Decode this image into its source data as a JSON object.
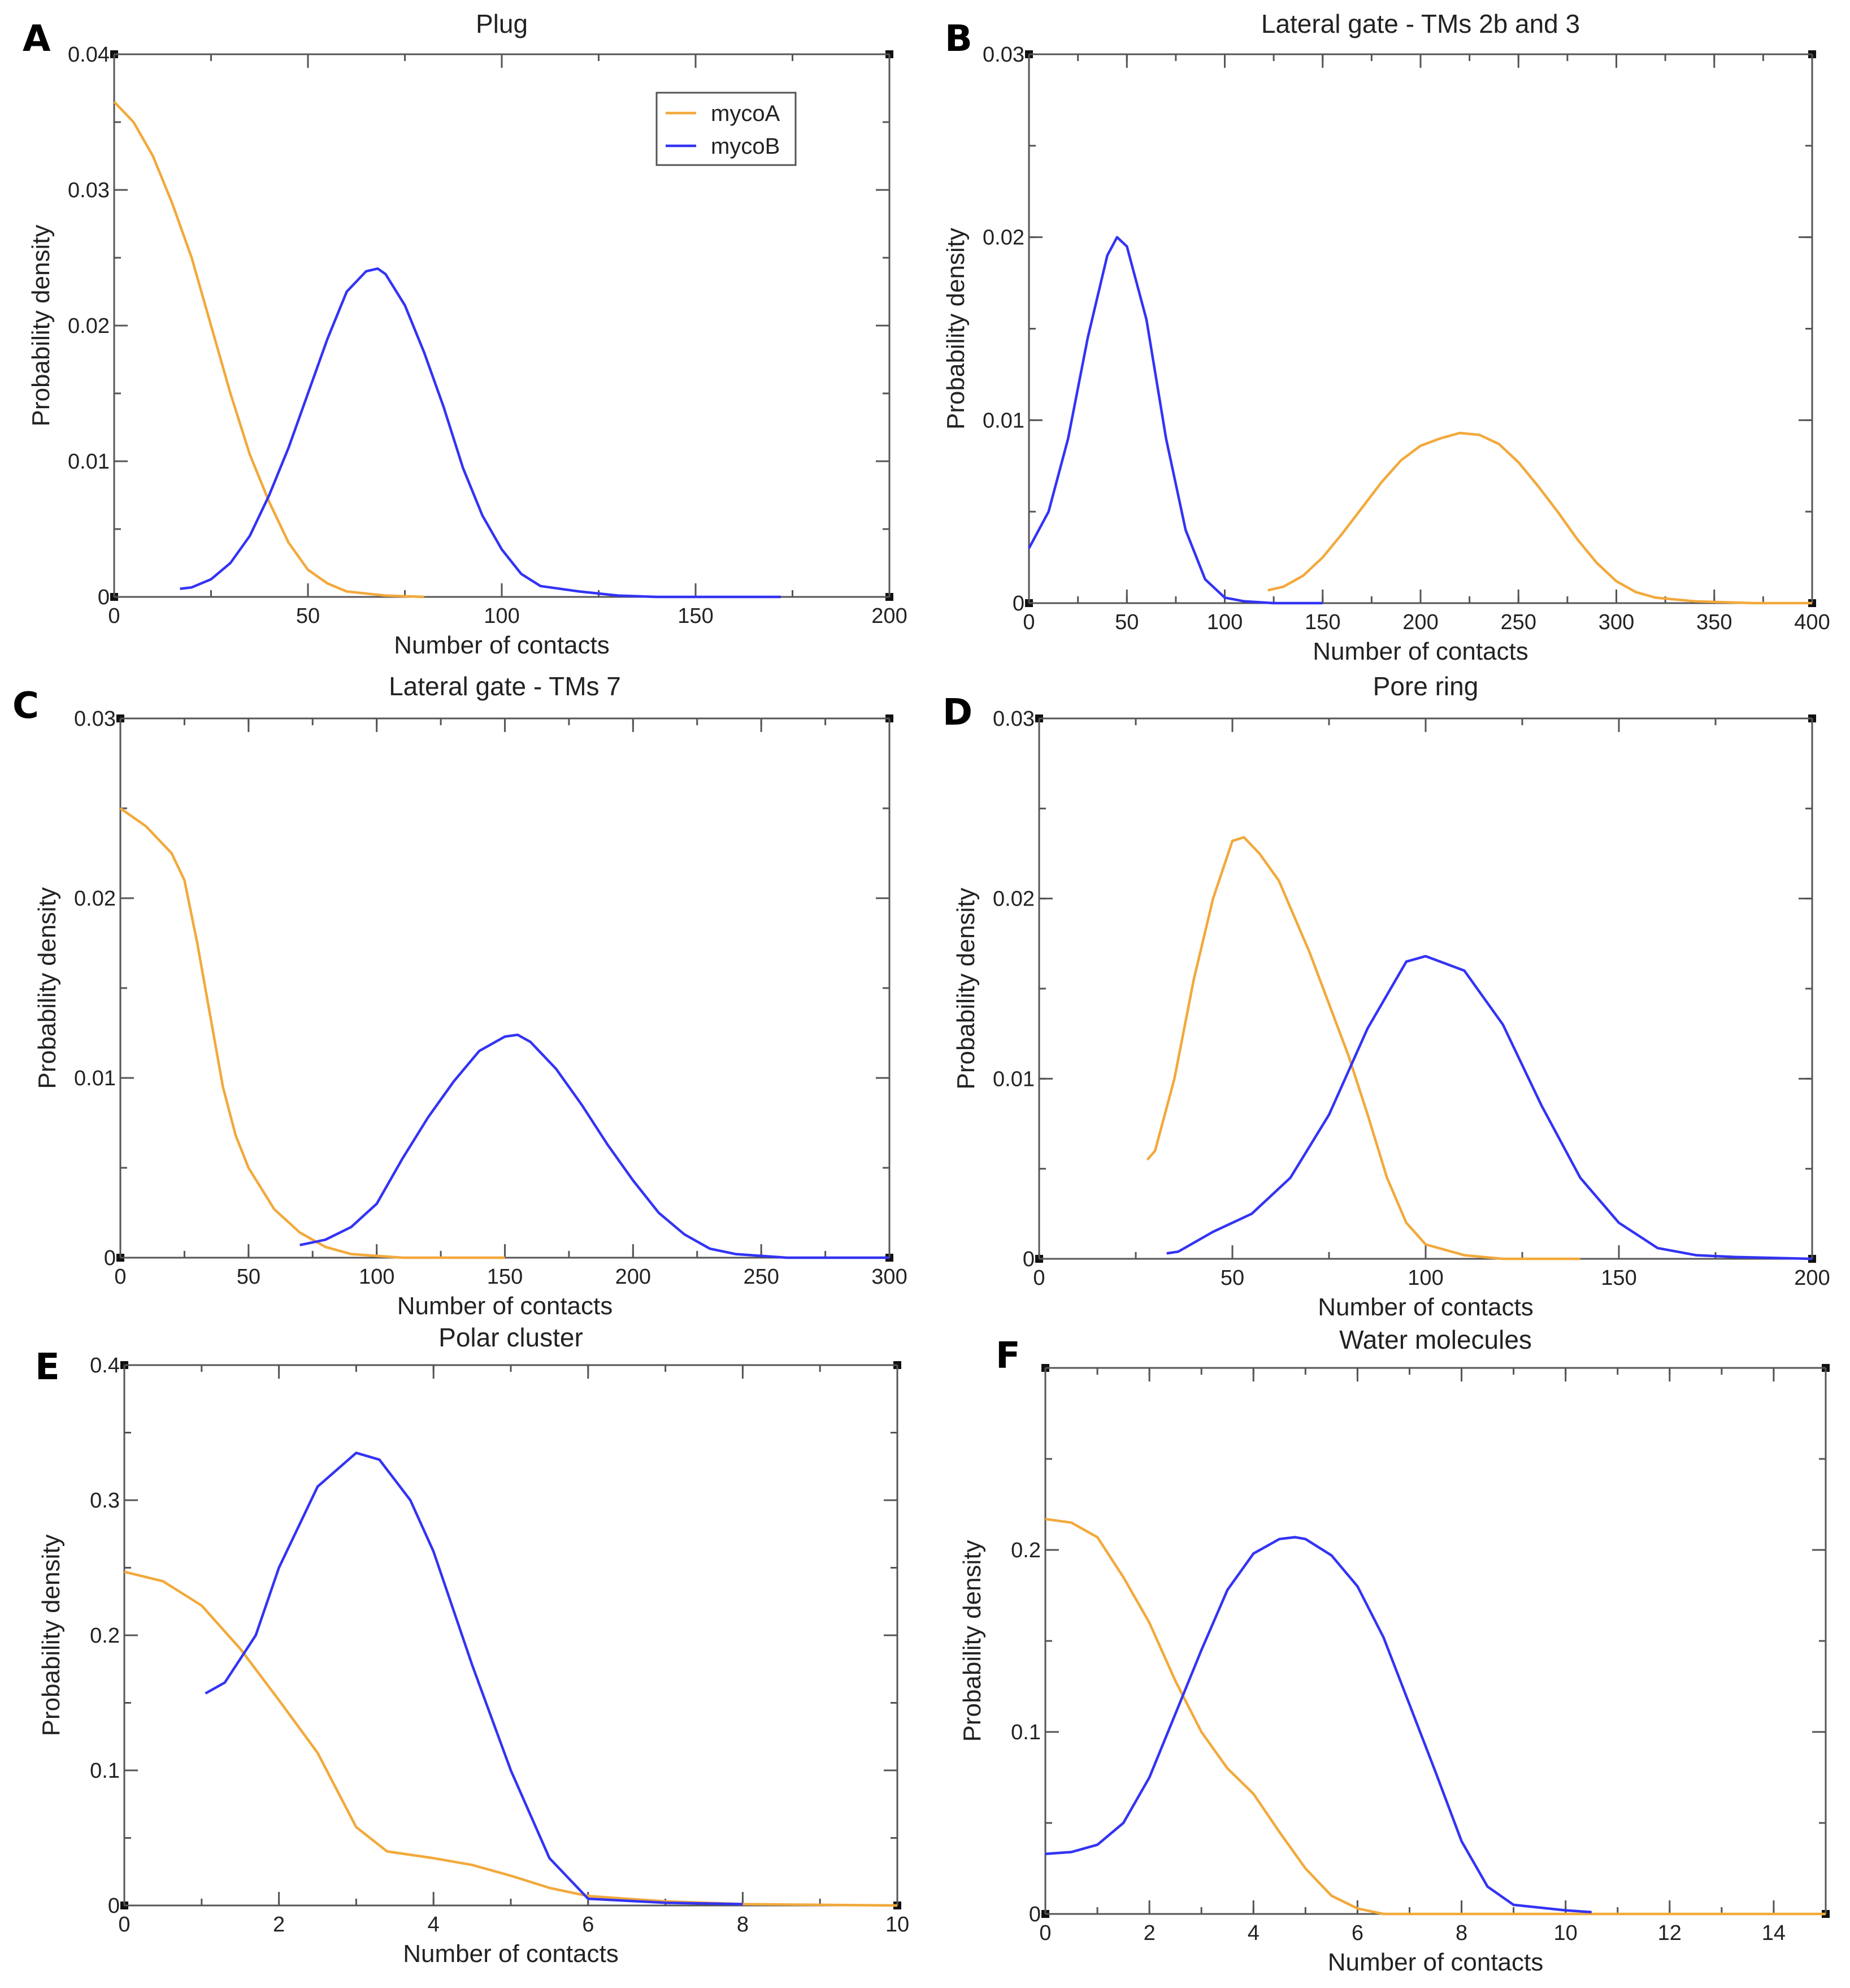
{
  "colors": {
    "mycoA": "#f2a93b",
    "mycoB": "#3333f5",
    "axis": "#555555"
  },
  "legend": {
    "placement": "top-right",
    "entries": [
      "mycoA",
      "mycoB"
    ]
  },
  "chart_data": [
    {
      "panel": "A",
      "type": "line",
      "title": "Plug",
      "xlabel": "Number of contacts",
      "ylabel": "Probability density",
      "xlim": [
        0,
        200
      ],
      "ylim": [
        0,
        0.04
      ],
      "xticks": [
        "0",
        "50",
        "100",
        "150",
        "200"
      ],
      "xtick_values": [
        0,
        50,
        100,
        150,
        200
      ],
      "xminor": 25,
      "yticks": [
        "0",
        "0.01",
        "0.02",
        "0.03",
        "0.04"
      ],
      "ytick_values": [
        0,
        0.01,
        0.02,
        0.03,
        0.04
      ],
      "yminor": 0.005,
      "series": [
        {
          "name": "mycoA",
          "x": [
            0,
            5,
            10,
            15,
            20,
            25,
            30,
            35,
            40,
            45,
            50,
            55,
            60,
            70,
            80
          ],
          "y": [
            0.0365,
            0.035,
            0.0325,
            0.029,
            0.025,
            0.02,
            0.015,
            0.0105,
            0.007,
            0.004,
            0.002,
            0.001,
            0.0004,
            0.0001,
            0
          ]
        },
        {
          "name": "mycoB",
          "x": [
            17,
            20,
            25,
            30,
            35,
            40,
            45,
            50,
            55,
            60,
            65,
            68,
            70,
            75,
            80,
            85,
            90,
            95,
            100,
            105,
            110,
            120,
            130,
            140,
            172
          ],
          "y": [
            0.0006,
            0.0007,
            0.0013,
            0.0025,
            0.0045,
            0.0075,
            0.011,
            0.015,
            0.019,
            0.0225,
            0.024,
            0.0242,
            0.0238,
            0.0215,
            0.018,
            0.014,
            0.0095,
            0.006,
            0.0035,
            0.0017,
            0.0008,
            0.0004,
            0.0001,
            0,
            0
          ]
        }
      ]
    },
    {
      "panel": "B",
      "type": "line",
      "title": "Lateral gate - TMs 2b and 3",
      "xlabel": "Number of contacts",
      "ylabel": "Probability density",
      "xlim": [
        0,
        400
      ],
      "ylim": [
        0,
        0.03
      ],
      "xticks": [
        "0",
        "50",
        "100",
        "150",
        "200",
        "250",
        "300",
        "350",
        "400"
      ],
      "xtick_values": [
        0,
        50,
        100,
        150,
        200,
        250,
        300,
        350,
        400
      ],
      "xminor": 25,
      "yticks": [
        "0",
        "0.01",
        "0.02",
        "0.03"
      ],
      "ytick_values": [
        0,
        0.01,
        0.02,
        0.03
      ],
      "yminor": 0.005,
      "series": [
        {
          "name": "mycoA",
          "x": [
            122,
            130,
            140,
            150,
            160,
            170,
            180,
            190,
            200,
            210,
            220,
            230,
            240,
            250,
            260,
            270,
            280,
            290,
            300,
            310,
            320,
            340,
            370,
            400
          ],
          "y": [
            0.0007,
            0.0009,
            0.0015,
            0.0025,
            0.0038,
            0.0052,
            0.0066,
            0.0078,
            0.0086,
            0.009,
            0.0093,
            0.0092,
            0.0087,
            0.0077,
            0.0064,
            0.005,
            0.0035,
            0.0022,
            0.0012,
            0.0006,
            0.0003,
            0.0001,
            0,
            0
          ]
        },
        {
          "name": "mycoB",
          "x": [
            0,
            10,
            20,
            30,
            40,
            45,
            50,
            60,
            70,
            80,
            90,
            100,
            110,
            125,
            150
          ],
          "y": [
            0.003,
            0.005,
            0.009,
            0.0145,
            0.019,
            0.02,
            0.0195,
            0.0155,
            0.009,
            0.004,
            0.0013,
            0.0003,
            0.0001,
            0,
            0
          ]
        }
      ]
    },
    {
      "panel": "C",
      "type": "line",
      "title": "Lateral gate - TMs 7",
      "xlabel": "Number of contacts",
      "ylabel": "Probability density",
      "xlim": [
        0,
        300
      ],
      "ylim": [
        0,
        0.03
      ],
      "xticks": [
        "0",
        "50",
        "100",
        "150",
        "200",
        "250",
        "300"
      ],
      "xtick_values": [
        0,
        50,
        100,
        150,
        200,
        250,
        300
      ],
      "xminor": 25,
      "yticks": [
        "0",
        "0.01",
        "0.02",
        "0.03"
      ],
      "ytick_values": [
        0,
        0.01,
        0.02,
        0.03
      ],
      "yminor": 0.005,
      "series": [
        {
          "name": "mycoA",
          "x": [
            0,
            10,
            20,
            25,
            30,
            35,
            40,
            45,
            50,
            60,
            70,
            80,
            90,
            110,
            150
          ],
          "y": [
            0.025,
            0.024,
            0.0225,
            0.021,
            0.0175,
            0.0135,
            0.0095,
            0.0068,
            0.005,
            0.0027,
            0.0014,
            0.0006,
            0.0002,
            0,
            0
          ]
        },
        {
          "name": "mycoB",
          "x": [
            70,
            80,
            90,
            100,
            110,
            120,
            130,
            140,
            150,
            155,
            160,
            170,
            180,
            190,
            200,
            210,
            220,
            230,
            240,
            260,
            300
          ],
          "y": [
            0.0007,
            0.001,
            0.0017,
            0.003,
            0.0055,
            0.0078,
            0.0098,
            0.0115,
            0.0123,
            0.0124,
            0.012,
            0.0105,
            0.0085,
            0.0063,
            0.0043,
            0.0025,
            0.0013,
            0.0005,
            0.0002,
            0,
            0
          ]
        }
      ]
    },
    {
      "panel": "D",
      "type": "line",
      "title": "Pore ring",
      "xlabel": "Number of contacts",
      "ylabel": "Probability density",
      "xlim": [
        0,
        200
      ],
      "ylim": [
        0,
        0.03
      ],
      "xticks": [
        "0",
        "50",
        "100",
        "150",
        "200"
      ],
      "xtick_values": [
        0,
        50,
        100,
        150,
        200
      ],
      "xminor": 25,
      "yticks": [
        "0",
        "0.01",
        "0.02",
        "0.03"
      ],
      "ytick_values": [
        0,
        0.01,
        0.02,
        0.03
      ],
      "yminor": 0.005,
      "series": [
        {
          "name": "mycoA",
          "x": [
            28,
            30,
            35,
            40,
            45,
            50,
            53,
            57,
            62,
            70,
            80,
            85,
            90,
            95,
            100,
            110,
            120,
            140
          ],
          "y": [
            0.0055,
            0.006,
            0.01,
            0.0155,
            0.02,
            0.0232,
            0.0234,
            0.0225,
            0.021,
            0.017,
            0.0113,
            0.008,
            0.0045,
            0.002,
            0.0008,
            0.0002,
            0,
            0
          ]
        },
        {
          "name": "mycoB",
          "x": [
            33,
            36,
            45,
            55,
            65,
            75,
            85,
            95,
            100,
            110,
            120,
            130,
            140,
            150,
            160,
            170,
            180,
            200
          ],
          "y": [
            0.0003,
            0.0004,
            0.0015,
            0.0025,
            0.0045,
            0.008,
            0.0128,
            0.0165,
            0.0168,
            0.016,
            0.013,
            0.0085,
            0.0045,
            0.002,
            0.0006,
            0.0002,
            0.0001,
            0
          ]
        }
      ]
    },
    {
      "panel": "E",
      "type": "line",
      "title": "Polar cluster",
      "xlabel": "Number of contacts",
      "ylabel": "Probability density",
      "xlim": [
        0,
        10
      ],
      "ylim": [
        0,
        0.4
      ],
      "xticks": [
        "0",
        "2",
        "4",
        "6",
        "8",
        "10"
      ],
      "xtick_values": [
        0,
        2,
        4,
        6,
        8,
        10
      ],
      "xminor": 1,
      "yticks": [
        "0",
        "0.1",
        "0.2",
        "0.3",
        "0.4"
      ],
      "ytick_values": [
        0,
        0.1,
        0.2,
        0.3,
        0.4
      ],
      "yminor": 0.05,
      "series": [
        {
          "name": "mycoA",
          "x": [
            0,
            0.5,
            1,
            1.5,
            2,
            2.5,
            3,
            3.4,
            4,
            4.5,
            5,
            5.5,
            6,
            7,
            8,
            10
          ],
          "y": [
            0.247,
            0.24,
            0.222,
            0.19,
            0.152,
            0.113,
            0.058,
            0.04,
            0.035,
            0.03,
            0.022,
            0.013,
            0.007,
            0.003,
            0.001,
            0
          ]
        },
        {
          "name": "mycoB",
          "x": [
            1.05,
            1.3,
            1.7,
            2,
            2.5,
            3,
            3.3,
            3.7,
            4,
            4.5,
            5,
            5.5,
            6,
            7,
            8
          ],
          "y": [
            0.157,
            0.165,
            0.2,
            0.25,
            0.31,
            0.335,
            0.33,
            0.3,
            0.262,
            0.178,
            0.1,
            0.035,
            0.005,
            0.002,
            0.001
          ]
        }
      ]
    },
    {
      "panel": "F",
      "type": "line",
      "title": "Water molecules",
      "xlabel": "Number of contacts",
      "ylabel": "Probability density",
      "xlim": [
        0,
        15
      ],
      "ylim": [
        0,
        0.3
      ],
      "xticks": [
        "0",
        "2",
        "4",
        "6",
        "8",
        "10",
        "12",
        "14"
      ],
      "xtick_values": [
        0,
        2,
        4,
        6,
        8,
        10,
        12,
        14
      ],
      "xminor": 1,
      "yticks": [
        "0",
        "0.1",
        "0.2"
      ],
      "ytick_values": [
        0,
        0.1,
        0.2
      ],
      "yminor": 0.05,
      "series": [
        {
          "name": "mycoA",
          "x": [
            0,
            0.5,
            1,
            1.5,
            2,
            2.5,
            3,
            3.5,
            4,
            4.5,
            5,
            5.5,
            6,
            6.5,
            15
          ],
          "y": [
            0.217,
            0.215,
            0.207,
            0.185,
            0.16,
            0.128,
            0.1,
            0.08,
            0.066,
            0.045,
            0.025,
            0.01,
            0.003,
            0,
            0
          ]
        },
        {
          "name": "mycoB",
          "x": [
            0,
            0.5,
            1,
            1.5,
            2,
            2.5,
            3,
            3.5,
            4,
            4.5,
            4.8,
            5,
            5.5,
            6,
            6.5,
            7,
            7.5,
            8,
            8.5,
            9,
            10,
            10.5
          ],
          "y": [
            0.033,
            0.034,
            0.038,
            0.05,
            0.075,
            0.11,
            0.145,
            0.178,
            0.198,
            0.206,
            0.207,
            0.206,
            0.197,
            0.18,
            0.152,
            0.115,
            0.078,
            0.04,
            0.015,
            0.005,
            0.002,
            0.001
          ]
        }
      ]
    }
  ]
}
